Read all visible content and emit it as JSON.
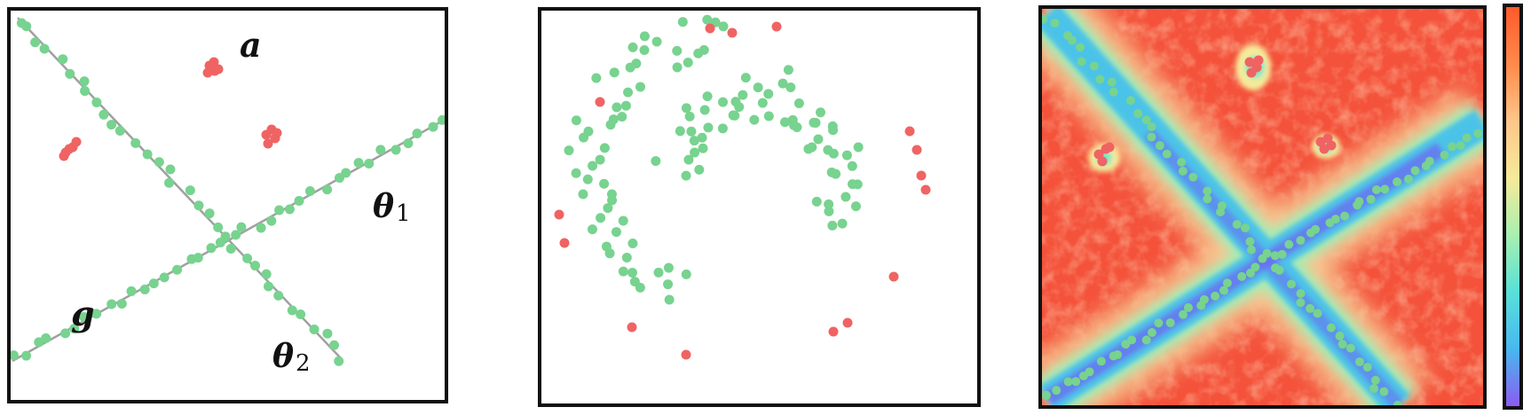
{
  "labels": {
    "a": "a",
    "g": "g",
    "theta1_base": "θ",
    "theta1_sub": "1",
    "theta2_base": "θ",
    "theta2_sub": "2"
  },
  "colors": {
    "inlier": "#77d38f",
    "outlier": "#f06363",
    "line": "#a0a0a0",
    "border": "#111111",
    "colorbar": [
      "#ff5a2c",
      "#ff8a4a",
      "#ffc58a",
      "#f6ea9a",
      "#a8f0b0",
      "#59e0d8",
      "#48b8f0",
      "#8b5cf0"
    ]
  }
}
